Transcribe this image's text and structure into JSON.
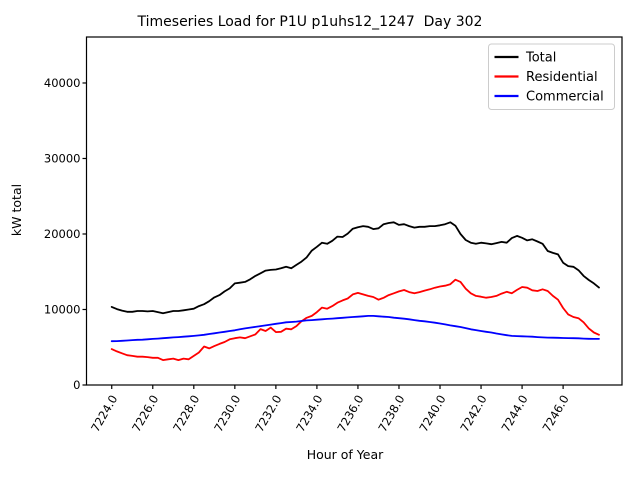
{
  "chart_data": {
    "type": "line",
    "title": "Timeseries Load for P1U p1uhs12_1247  Day 302",
    "xlabel": "Hour of Year",
    "ylabel": "kW total",
    "xlim": [
      7222.77,
      7248.87
    ],
    "ylim": [
      0,
      46090
    ],
    "grid": false,
    "legend_location": "upper right",
    "x_ticks": [
      7224,
      7226,
      7228,
      7230,
      7232,
      7234,
      7236,
      7238,
      7240,
      7242,
      7244,
      7246
    ],
    "x_tick_labels": [
      "7224.0",
      "7226.0",
      "7228.0",
      "7230.0",
      "7232.0",
      "7234.0",
      "7236.0",
      "7238.0",
      "7240.0",
      "7242.0",
      "7244.0",
      "7246.0"
    ],
    "y_ticks": [
      0,
      10000,
      20000,
      30000,
      40000
    ],
    "y_tick_labels": [
      "0",
      "10000",
      "20000",
      "30000",
      "40000"
    ],
    "x_start": 7224.0,
    "x_step": 0.25,
    "series": [
      {
        "name": "Total",
        "color": "#000000",
        "values": [
          10350,
          10050,
          9850,
          9700,
          9700,
          9800,
          9800,
          9750,
          9800,
          9650,
          9500,
          9650,
          9800,
          9800,
          9900,
          10000,
          10100,
          10450,
          10700,
          11100,
          11600,
          11900,
          12400,
          12800,
          13450,
          13550,
          13650,
          14000,
          14450,
          14800,
          15150,
          15250,
          15300,
          15450,
          15650,
          15450,
          15900,
          16350,
          16900,
          17800,
          18300,
          18850,
          18700,
          19100,
          19650,
          19600,
          20050,
          20700,
          20900,
          21050,
          20950,
          20650,
          20750,
          21300,
          21450,
          21550,
          21200,
          21300,
          21050,
          20850,
          20950,
          20950,
          21050,
          21050,
          21150,
          21300,
          21550,
          21100,
          20000,
          19200,
          18850,
          18700,
          18850,
          18750,
          18650,
          18800,
          18950,
          18850,
          19450,
          19750,
          19500,
          19150,
          19300,
          19000,
          18700,
          17750,
          17500,
          17300,
          16200,
          15750,
          15650,
          15200,
          14450,
          13900,
          13450,
          12900
        ]
      },
      {
        "name": "Residential",
        "color": "#ff0000",
        "values": [
          4750,
          4450,
          4200,
          3950,
          3850,
          3750,
          3750,
          3700,
          3600,
          3600,
          3300,
          3400,
          3500,
          3300,
          3500,
          3400,
          3850,
          4300,
          5100,
          4850,
          5150,
          5450,
          5700,
          6050,
          6200,
          6300,
          6200,
          6450,
          6700,
          7400,
          7150,
          7600,
          7000,
          7050,
          7450,
          7380,
          7800,
          8450,
          8900,
          9150,
          9650,
          10250,
          10100,
          10450,
          10900,
          11200,
          11450,
          12000,
          12200,
          12000,
          11800,
          11650,
          11300,
          11550,
          11900,
          12150,
          12400,
          12580,
          12300,
          12150,
          12300,
          12500,
          12680,
          12890,
          13050,
          13150,
          13350,
          13950,
          13650,
          12760,
          12150,
          11800,
          11700,
          11560,
          11650,
          11800,
          12100,
          12350,
          12150,
          12600,
          12980,
          12890,
          12540,
          12450,
          12675,
          12450,
          11800,
          11300,
          10200,
          9350,
          9000,
          8850,
          8300,
          7500,
          6950,
          6650
        ]
      },
      {
        "name": "Commercial",
        "color": "#0000ff",
        "values": [
          5800,
          5820,
          5850,
          5900,
          5950,
          5980,
          6000,
          6050,
          6100,
          6150,
          6200,
          6250,
          6300,
          6350,
          6400,
          6450,
          6500,
          6570,
          6650,
          6750,
          6850,
          6950,
          7050,
          7150,
          7250,
          7380,
          7500,
          7600,
          7700,
          7800,
          7900,
          8000,
          8100,
          8200,
          8300,
          8350,
          8400,
          8480,
          8550,
          8600,
          8650,
          8700,
          8750,
          8800,
          8850,
          8900,
          8950,
          9000,
          9050,
          9100,
          9150,
          9150,
          9100,
          9050,
          9000,
          8920,
          8850,
          8780,
          8700,
          8600,
          8500,
          8430,
          8350,
          8250,
          8150,
          8030,
          7900,
          7790,
          7680,
          7530,
          7380,
          7270,
          7150,
          7050,
          6950,
          6820,
          6700,
          6600,
          6500,
          6480,
          6450,
          6420,
          6400,
          6350,
          6300,
          6280,
          6270,
          6250,
          6230,
          6210,
          6200,
          6180,
          6150,
          6120,
          6100,
          6100
        ]
      }
    ]
  }
}
